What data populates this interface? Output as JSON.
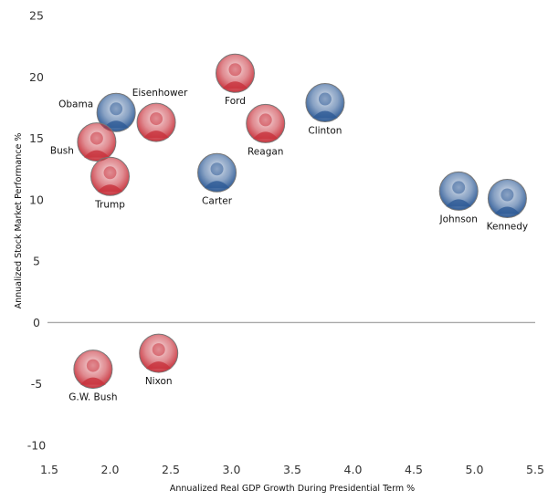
{
  "chart_data": {
    "type": "scatter",
    "title": "",
    "xlabel": "Annualized Real GDP Growth During Presidential Term %",
    "ylabel": "Annualized Stock Market Performance %",
    "xlim": [
      1.5,
      5.5
    ],
    "ylim": [
      -10,
      25
    ],
    "x_ticks": [
      "1.5",
      "2.0",
      "2.5",
      "3.0",
      "3.5",
      "4.0",
      "4.5",
      "5.0",
      "5.5"
    ],
    "y_ticks": [
      "25",
      "20",
      "15",
      "10",
      "5",
      "0",
      "-5",
      "-10"
    ],
    "grid": false,
    "zero_line": true,
    "party_colors": {
      "Republican": "#c8323c",
      "Democrat": "#2d5a96"
    },
    "points": [
      {
        "name": "Obama",
        "party": "Democrat",
        "x": 2.05,
        "y": 17.1,
        "label_pos": "left"
      },
      {
        "name": "Eisenhower",
        "party": "Republican",
        "x": 2.38,
        "y": 16.3,
        "label_pos": "top"
      },
      {
        "name": "Bush",
        "party": "Republican",
        "x": 1.89,
        "y": 14.7,
        "label_pos": "left"
      },
      {
        "name": "Trump",
        "party": "Republican",
        "x": 2.0,
        "y": 11.9,
        "label_pos": "bottom"
      },
      {
        "name": "Ford",
        "party": "Republican",
        "x": 3.03,
        "y": 20.3,
        "label_pos": "bottom"
      },
      {
        "name": "Reagan",
        "party": "Republican",
        "x": 3.28,
        "y": 16.2,
        "label_pos": "bottom"
      },
      {
        "name": "Clinton",
        "party": "Democrat",
        "x": 3.77,
        "y": 17.9,
        "label_pos": "bottom"
      },
      {
        "name": "Carter",
        "party": "Democrat",
        "x": 2.88,
        "y": 12.2,
        "label_pos": "bottom"
      },
      {
        "name": "Johnson",
        "party": "Democrat",
        "x": 4.87,
        "y": 10.7,
        "label_pos": "bottom"
      },
      {
        "name": "Kennedy",
        "party": "Democrat",
        "x": 5.27,
        "y": 10.1,
        "label_pos": "bottom"
      },
      {
        "name": "G.W. Bush",
        "party": "Republican",
        "x": 1.86,
        "y": -3.8,
        "label_pos": "bottom"
      },
      {
        "name": "Nixon",
        "party": "Republican",
        "x": 2.4,
        "y": -2.5,
        "label_pos": "bottom"
      }
    ]
  }
}
